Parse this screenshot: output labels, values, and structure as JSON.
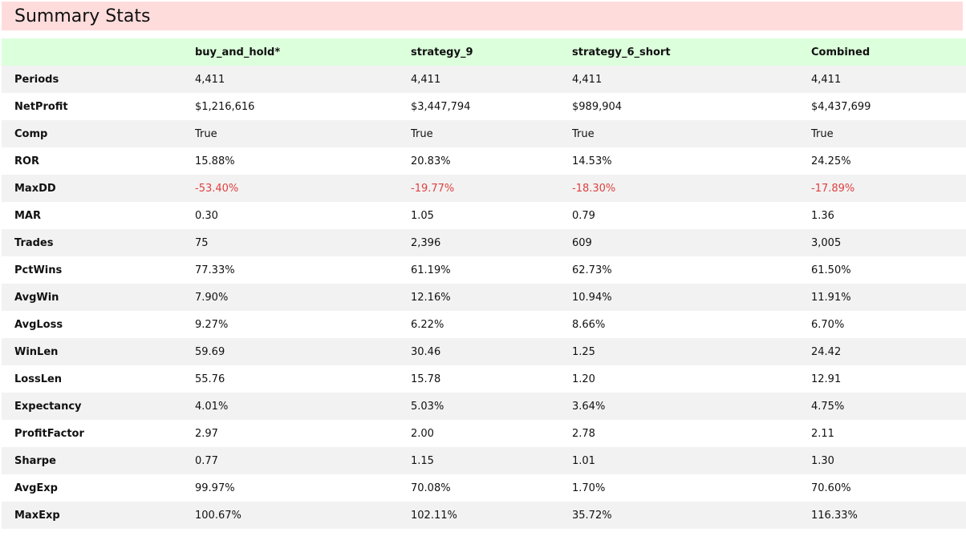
{
  "header": {
    "title": "Summary Stats",
    "background_color": "#ffdcdc"
  },
  "table": {
    "header_background_color": "#dcffdc",
    "negative_color": "#e04040",
    "columns": [
      "",
      "buy_and_hold*",
      "strategy_9",
      "strategy_6_short",
      "Combined"
    ],
    "rows": [
      {
        "label": "Periods",
        "values": [
          "4,411",
          "4,411",
          "4,411",
          "4,411"
        ]
      },
      {
        "label": "NetProfit",
        "values": [
          "$1,216,616",
          "$3,447,794",
          "$989,904",
          "$4,437,699"
        ]
      },
      {
        "label": "Comp",
        "values": [
          "True",
          "True",
          "True",
          "True"
        ]
      },
      {
        "label": "ROR",
        "values": [
          "15.88%",
          "20.83%",
          "14.53%",
          "24.25%"
        ]
      },
      {
        "label": "MaxDD",
        "values": [
          "-53.40%",
          "-19.77%",
          "-18.30%",
          "-17.89%"
        ]
      },
      {
        "label": "MAR",
        "values": [
          "0.30",
          "1.05",
          "0.79",
          "1.36"
        ]
      },
      {
        "label": "Trades",
        "values": [
          "75",
          "2,396",
          "609",
          "3,005"
        ]
      },
      {
        "label": "PctWins",
        "values": [
          "77.33%",
          "61.19%",
          "62.73%",
          "61.50%"
        ]
      },
      {
        "label": "AvgWin",
        "values": [
          "7.90%",
          "12.16%",
          "10.94%",
          "11.91%"
        ]
      },
      {
        "label": "AvgLoss",
        "values": [
          "9.27%",
          "6.22%",
          "8.66%",
          "6.70%"
        ]
      },
      {
        "label": "WinLen",
        "values": [
          "59.69",
          "30.46",
          "1.25",
          "24.42"
        ]
      },
      {
        "label": "LossLen",
        "values": [
          "55.76",
          "15.78",
          "1.20",
          "12.91"
        ]
      },
      {
        "label": "Expectancy",
        "values": [
          "4.01%",
          "5.03%",
          "3.64%",
          "4.75%"
        ]
      },
      {
        "label": "ProfitFactor",
        "values": [
          "2.97",
          "2.00",
          "2.78",
          "2.11"
        ]
      },
      {
        "label": "Sharpe",
        "values": [
          "0.77",
          "1.15",
          "1.01",
          "1.30"
        ]
      },
      {
        "label": "AvgExp",
        "values": [
          "99.97%",
          "70.08%",
          "1.70%",
          "70.60%"
        ]
      },
      {
        "label": "MaxExp",
        "values": [
          "100.67%",
          "102.11%",
          "35.72%",
          "116.33%"
        ]
      }
    ]
  }
}
